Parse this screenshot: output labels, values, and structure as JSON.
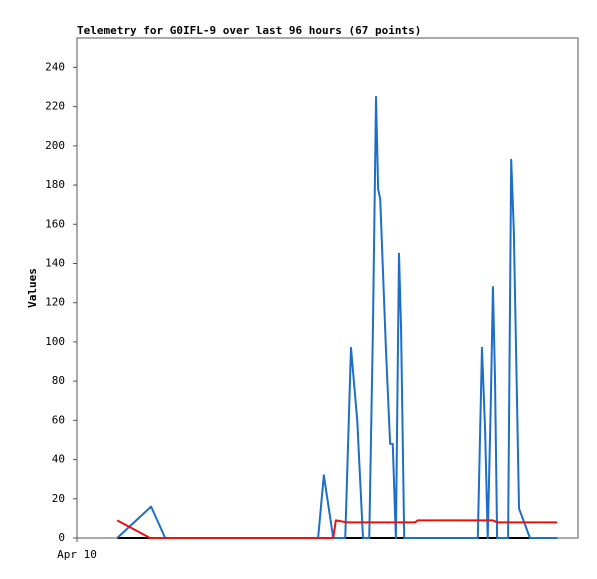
{
  "chart_data": {
    "type": "line",
    "title": "Telemetry for G0IFL-9 over last 96 hours (67 points)",
    "y_label": "Values",
    "xlim": [
      0,
      96
    ],
    "xticks": [
      {
        "value": 0,
        "label": "Apr 10"
      }
    ],
    "ylim": [
      0,
      255
    ],
    "yticks": [
      0,
      20,
      40,
      60,
      80,
      100,
      120,
      140,
      160,
      180,
      200,
      220,
      240
    ],
    "series": [
      {
        "color": "#000000",
        "x": [
          7.7,
          92.0
        ],
        "values": [
          0,
          0
        ]
      },
      {
        "color": "#1e6ec8",
        "x": [
          7.7,
          14.2,
          16.9,
          46.2,
          47.3,
          49.1,
          51.4,
          52.5,
          53.7,
          54.8,
          56.0,
          56.7,
          57.3,
          57.7,
          58.1,
          59.2,
          60.0,
          60.5,
          61.1,
          61.7,
          62.1,
          62.7,
          76.8,
          77.6,
          78.2,
          78.7,
          79.3,
          79.7,
          80.1,
          80.5,
          82.6,
          83.2,
          83.7,
          84.7,
          86.8,
          92.0
        ],
        "values": [
          0,
          16,
          0,
          0,
          32,
          0,
          0,
          97,
          60,
          0,
          0,
          106,
          225,
          178,
          173,
          96,
          48,
          48,
          0,
          145,
          106,
          0,
          0,
          97,
          55,
          0,
          70,
          128,
          81,
          0,
          0,
          193,
          157,
          15,
          0,
          0
        ]
      },
      {
        "color": "#e8120c",
        "x": [
          7.7,
          14.0,
          49.1,
          49.6,
          51.7,
          64.8,
          65.3,
          79.7,
          80.5,
          92.0
        ],
        "values": [
          9,
          0,
          0,
          9,
          8,
          8,
          9,
          9,
          8,
          8
        ]
      }
    ]
  }
}
